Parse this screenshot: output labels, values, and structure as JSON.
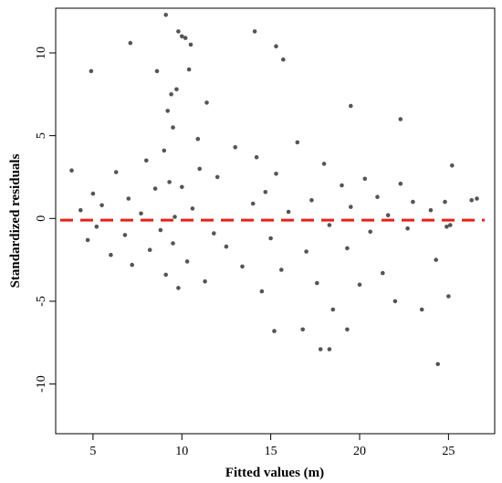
{
  "chart_data": {
    "type": "scatter",
    "title": "",
    "xlabel": "Fitted values (m)",
    "ylabel": "Standardized residuals",
    "xlim": [
      2.9,
      27.6
    ],
    "ylim": [
      -13,
      12.7
    ],
    "xticks": [
      5,
      10,
      15,
      20,
      25
    ],
    "yticks": [
      10,
      5,
      0,
      -5,
      -10
    ],
    "xtick_labels": [
      "5",
      "10",
      "15",
      "20",
      "25"
    ],
    "ytick_labels": [
      "10",
      "5",
      "0",
      "-5",
      "-10"
    ],
    "grid": false,
    "legend": "none",
    "point_color": "#555555",
    "reference_line": {
      "y": -0.1,
      "color": "#e8221b",
      "style": "dashed"
    },
    "points": {
      "x": [
        3.8,
        4.3,
        4.7,
        5.0,
        5.2,
        5.5,
        6.0,
        6.3,
        6.8,
        7.0,
        7.2,
        7.7,
        8.0,
        8.2,
        8.5,
        8.8,
        9.0,
        9.1,
        9.3,
        9.5,
        9.6,
        9.8,
        10.0,
        10.3,
        10.6,
        11.0,
        11.3,
        11.8,
        12.0,
        12.5,
        13.0,
        13.4,
        14.0,
        14.2,
        14.5,
        14.7,
        15.0,
        15.3,
        15.6,
        16.0,
        16.5,
        17.0,
        17.3,
        17.6,
        18.0,
        18.3,
        18.5,
        19.0,
        19.3,
        19.5,
        20.0,
        20.3,
        20.6,
        21.0,
        21.3,
        21.6,
        22.0,
        22.3,
        22.7,
        23.0,
        23.5,
        24.0,
        24.3,
        24.8,
        25.0,
        25.2,
        26.3,
        26.6,
        4.9,
        7.1,
        8.6,
        9.1,
        9.4,
        9.8,
        10.5,
        14.1,
        15.3,
        15.7,
        17.8,
        18.3,
        19.3,
        22.3,
        25.1,
        9.2,
        9.7,
        10.0,
        10.2,
        10.4,
        9.5,
        10.9,
        11.4,
        24.4,
        24.9,
        15.2,
        16.8,
        19.5
      ],
      "y": [
        2.9,
        0.5,
        -1.3,
        1.5,
        -0.5,
        0.8,
        -2.2,
        2.8,
        -1.0,
        1.2,
        -2.8,
        0.3,
        3.5,
        -1.9,
        1.8,
        -0.7,
        4.1,
        -3.4,
        2.2,
        -1.5,
        0.1,
        -4.2,
        1.9,
        -2.6,
        0.6,
        3.0,
        -3.8,
        -0.9,
        2.5,
        -1.7,
        4.3,
        -2.9,
        0.9,
        3.7,
        -4.4,
        1.6,
        -1.2,
        2.7,
        -3.1,
        0.4,
        4.6,
        -2.0,
        1.1,
        -3.9,
        3.3,
        -0.4,
        -5.5,
        2.0,
        -1.8,
        0.7,
        -4.0,
        2.4,
        -0.8,
        1.3,
        -3.3,
        0.2,
        -5.0,
        2.1,
        -0.6,
        1.0,
        -5.5,
        0.5,
        -2.5,
        1.0,
        -4.7,
        3.2,
        1.1,
        1.2,
        8.9,
        10.6,
        8.9,
        12.3,
        7.5,
        11.3,
        10.5,
        11.3,
        10.4,
        9.6,
        -7.9,
        -7.9,
        -6.7,
        6.0,
        -0.4,
        6.5,
        7.8,
        11.0,
        10.9,
        9.0,
        5.5,
        4.8,
        7.0,
        -8.8,
        -0.5,
        -6.8,
        -6.7,
        6.8
      ]
    }
  }
}
